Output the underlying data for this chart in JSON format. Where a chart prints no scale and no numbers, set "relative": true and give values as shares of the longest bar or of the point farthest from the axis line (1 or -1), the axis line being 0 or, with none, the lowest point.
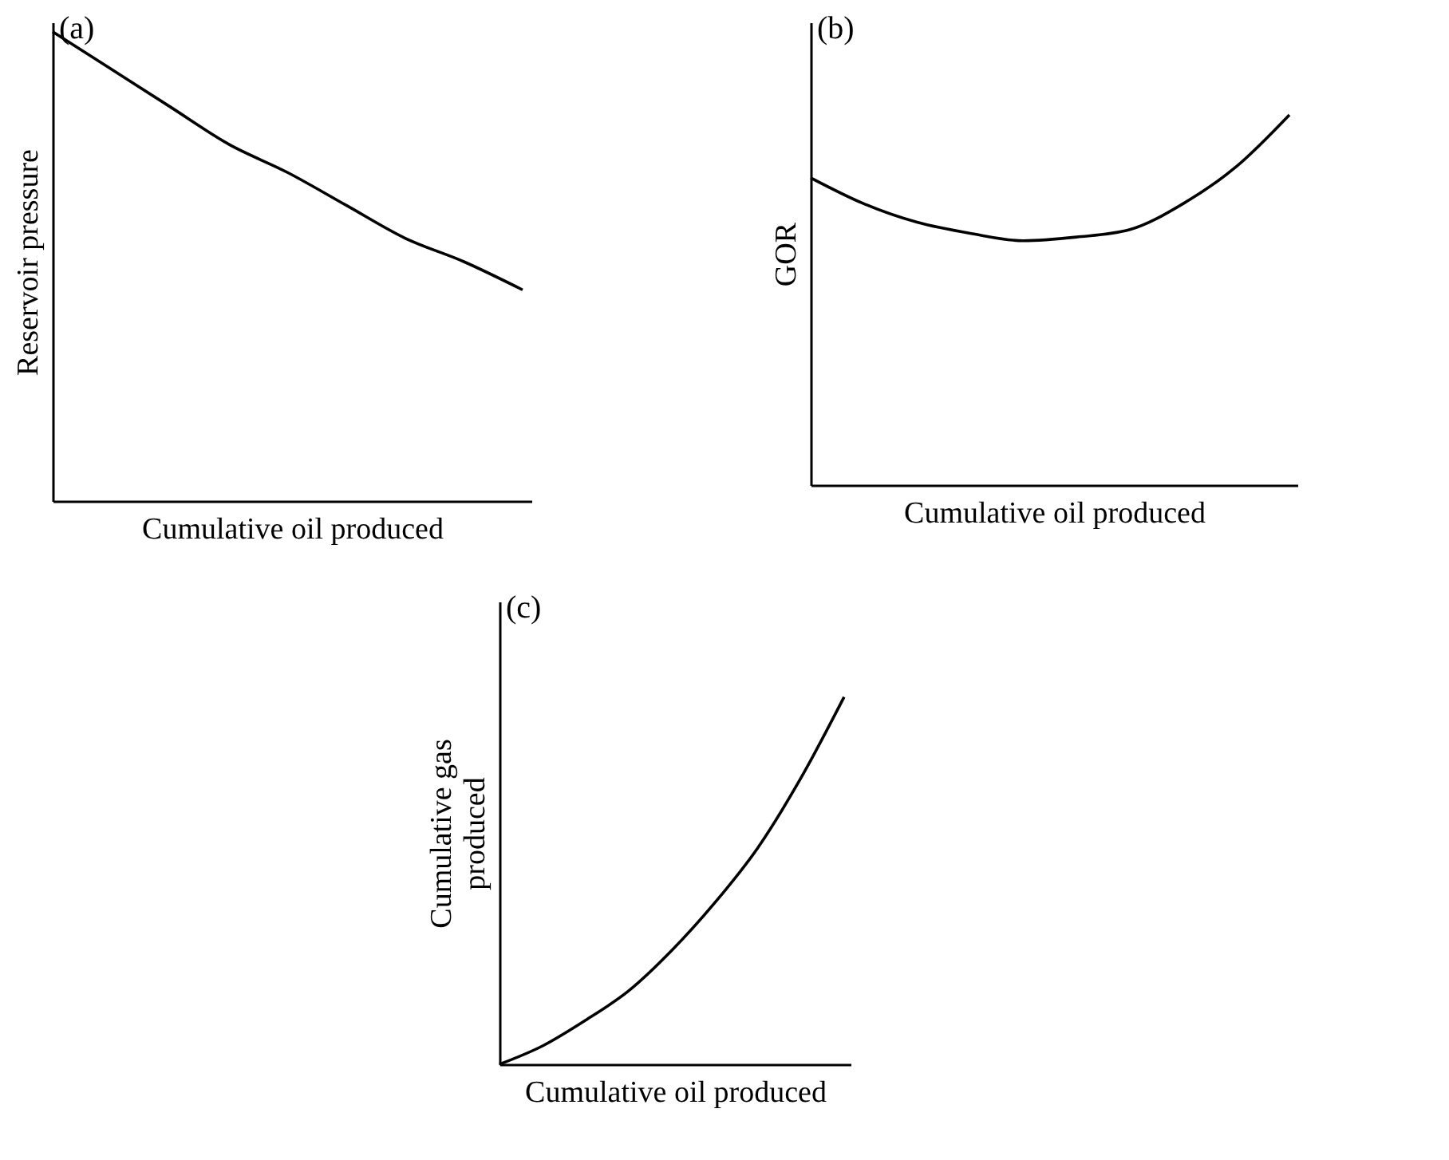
{
  "chart_data": [
    {
      "type": "line",
      "title": "(a)",
      "relative": true,
      "tick_labels": false,
      "xlabel": "Cumulative oil produced",
      "ylabel": "Reservoir pressure",
      "categories": [
        null,
        null,
        null,
        null,
        null,
        null,
        null,
        null,
        null
      ],
      "series": [
        {
          "color": "#000000",
          "values": [
            1,
            0.92,
            0.84,
            0.76,
            0.7,
            0.63,
            0.56,
            0.51,
            0.45
          ]
        }
      ]
    },
    {
      "type": "line",
      "title": "(b)",
      "relative": true,
      "tick_labels": false,
      "xlabel": "Cumulative oil produced",
      "ylabel": "GOR",
      "categories": [
        null,
        null,
        null,
        null,
        null,
        null,
        null,
        null,
        null,
        null
      ],
      "series": [
        {
          "color": "#000000",
          "values": [
            0.83,
            0.76,
            0.71,
            0.68,
            0.66,
            0.67,
            0.69,
            0.76,
            0.86,
            1
          ]
        }
      ]
    },
    {
      "type": "line",
      "title": "(c)",
      "relative": true,
      "tick_labels": false,
      "xlabel": "Cumulative oil produced",
      "ylabel": "Cumulative gas produced",
      "categories": [
        null,
        null,
        null,
        null,
        null,
        null,
        null,
        null,
        null
      ],
      "series": [
        {
          "color": "#000000",
          "values": [
            0,
            0.05,
            0.12,
            0.2,
            0.31,
            0.44,
            0.59,
            0.78,
            1
          ]
        }
      ]
    }
  ]
}
